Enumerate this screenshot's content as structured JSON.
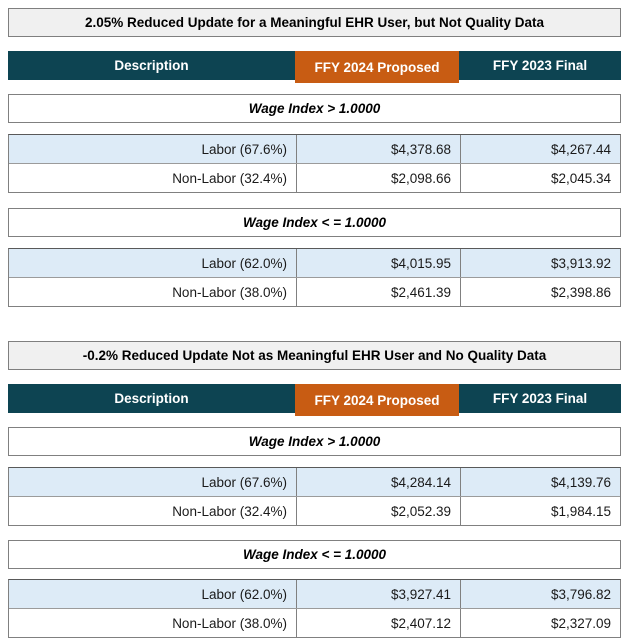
{
  "columns": {
    "description": "Description",
    "ffy2024": "FFY 2024 Proposed",
    "ffy2023": "FFY 2023 Final"
  },
  "colors": {
    "header_teal": "#0d4452",
    "header_orange": "#c85c13",
    "row_highlight_blue": "#ddebf7",
    "title_bar_gray": "#f0f0f0",
    "border_gray": "#808080"
  },
  "sections": [
    {
      "title": "2.05% Reduced Update for a Meaningful EHR User, but Not Quality Data",
      "groups": [
        {
          "label": "Wage Index > 1.0000",
          "rows": [
            {
              "label": "Labor (67.6%)",
              "proposed": "$4,378.68",
              "final": "$4,267.44"
            },
            {
              "label": "Non-Labor (32.4%)",
              "proposed": "$2,098.66",
              "final": "$2,045.34"
            }
          ]
        },
        {
          "label": "Wage Index < = 1.0000",
          "rows": [
            {
              "label": "Labor (62.0%)",
              "proposed": "$4,015.95",
              "final": "$3,913.92"
            },
            {
              "label": "Non-Labor (38.0%)",
              "proposed": "$2,461.39",
              "final": "$2,398.86"
            }
          ]
        }
      ]
    },
    {
      "title": "-0.2% Reduced Update Not as Meaningful EHR User and No Quality Data",
      "groups": [
        {
          "label": "Wage Index > 1.0000",
          "rows": [
            {
              "label": "Labor (67.6%)",
              "proposed": "$4,284.14",
              "final": "$4,139.76"
            },
            {
              "label": "Non-Labor (32.4%)",
              "proposed": "$2,052.39",
              "final": "$1,984.15"
            }
          ]
        },
        {
          "label": "Wage Index < = 1.0000",
          "rows": [
            {
              "label": "Labor (62.0%)",
              "proposed": "$3,927.41",
              "final": "$3,796.82"
            },
            {
              "label": "Non-Labor (38.0%)",
              "proposed": "$2,407.12",
              "final": "$2,327.09"
            }
          ]
        }
      ]
    }
  ]
}
